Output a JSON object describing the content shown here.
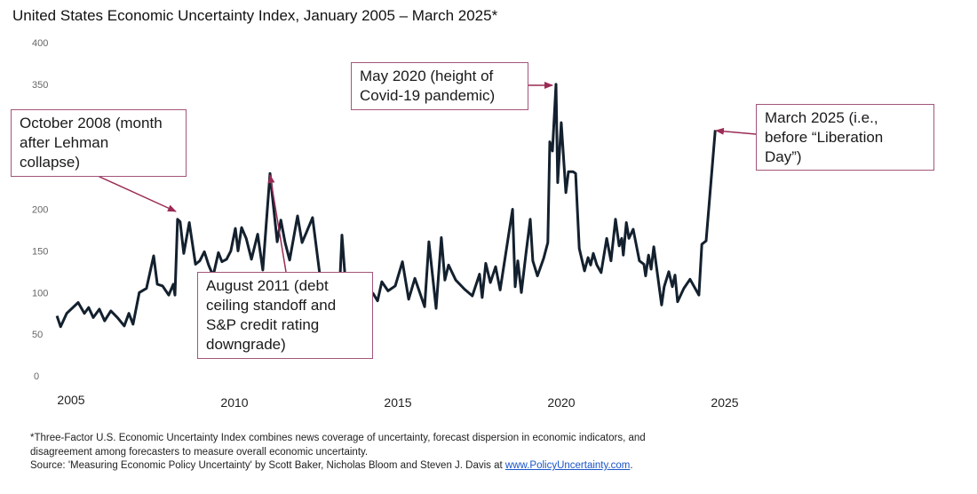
{
  "title": "United States Economic Uncertainty Index, January 2005 – March 2025*",
  "chart_data": {
    "type": "line",
    "title": "United States Economic Uncertainty Index, January 2005 – March 2025*",
    "xlabel": "",
    "ylabel": "",
    "xlim": [
      2005,
      2026
    ],
    "ylim": [
      0,
      400
    ],
    "yticks": [
      0,
      50,
      100,
      150,
      200,
      350,
      400
    ],
    "xticks": [
      "2005",
      "2010",
      "2015",
      "2020",
      "2025"
    ],
    "grid": false,
    "series": [
      {
        "name": "Three-Factor U.S. Economic Uncertainty Index",
        "color": "#13202e",
        "x": [
          2005.03,
          2005.14,
          2005.33,
          2005.68,
          2005.87,
          2006.0,
          2006.14,
          2006.33,
          2006.49,
          2006.68,
          2006.88,
          2007.09,
          2007.23,
          2007.36,
          2007.55,
          2007.77,
          2007.99,
          2008.1,
          2008.26,
          2008.45,
          2008.59,
          2008.64,
          2008.72,
          2008.8,
          2008.91,
          2009.08,
          2009.27,
          2009.4,
          2009.54,
          2009.67,
          2009.81,
          2009.97,
          2010.08,
          2010.22,
          2010.35,
          2010.49,
          2010.57,
          2010.68,
          2010.82,
          2010.98,
          2011.17,
          2011.33,
          2011.55,
          2011.77,
          2011.88,
          2012.01,
          2012.15,
          2012.39,
          2012.53,
          2012.66,
          2012.85,
          2013.07,
          2013.21,
          2013.48,
          2013.67,
          2013.75,
          2013.86,
          2014.16,
          2014.48,
          2014.7,
          2014.84,
          2014.97,
          2015.16,
          2015.38,
          2015.6,
          2015.79,
          2015.98,
          2016.28,
          2016.41,
          2016.63,
          2016.79,
          2016.9,
          2017.01,
          2017.23,
          2017.5,
          2017.74,
          2017.96,
          2018.04,
          2018.15,
          2018.29,
          2018.45,
          2018.59,
          2018.97,
          2019.05,
          2019.13,
          2019.24,
          2019.38,
          2019.51,
          2019.59,
          2019.73,
          2019.92,
          2020.05,
          2020.11,
          2020.19,
          2020.3,
          2020.35,
          2020.46,
          2020.6,
          2020.68,
          2020.82,
          2020.9,
          2021.01,
          2021.17,
          2021.28,
          2021.36,
          2021.44,
          2021.55,
          2021.68,
          2021.85,
          2021.98,
          2022.12,
          2022.23,
          2022.31,
          2022.36,
          2022.45,
          2022.53,
          2022.66,
          2022.85,
          2022.99,
          2023.04,
          2023.13,
          2023.21,
          2023.29,
          2023.53,
          2023.61,
          2023.75,
          2023.86,
          2023.94,
          2024.02,
          2024.21,
          2024.4,
          2024.67,
          2024.76,
          2024.89,
          2025.17
        ],
        "y": [
          72,
          59,
          75,
          88,
          75,
          82,
          70,
          80,
          66,
          78,
          70,
          60,
          75,
          62,
          100,
          105,
          144,
          110,
          108,
          97,
          110,
          97,
          188,
          185,
          147,
          184,
          134,
          138,
          149,
          133,
          120,
          148,
          137,
          140,
          150,
          177,
          150,
          178,
          165,
          140,
          170,
          127,
          243,
          161,
          187,
          160,
          139,
          192,
          160,
          172,
          190,
          122,
          115,
          120,
          100,
          169,
          112,
          110,
          105,
          99,
          90,
          113,
          102,
          108,
          137,
          92,
          117,
          83,
          161,
          81,
          166,
          115,
          133,
          115,
          104,
          96,
          122,
          94,
          135,
          112,
          131,
          103,
          200,
          107,
          138,
          100,
          147,
          188,
          138,
          120,
          141,
          160,
          281,
          270,
          350,
          232,
          304,
          220,
          245,
          245,
          243,
          153,
          126,
          142,
          133,
          147,
          133,
          124,
          165,
          138,
          188,
          156,
          165,
          145,
          184,
          165,
          176,
          138,
          134,
          120,
          145,
          128,
          155,
          85,
          107,
          125,
          107,
          121,
          89,
          105,
          116,
          97,
          158,
          162,
          295
        ]
      }
    ],
    "annotations": [
      {
        "id": "lehman",
        "text": "October 2008 (month after Lehman collapse)",
        "lines": [
          "October 2008 (month",
          "after Lehman",
          "collapse)"
        ],
        "target": [
          2008.75,
          188
        ]
      },
      {
        "id": "debt",
        "text": "August 2011 (debt ceiling standoff and S&P credit rating downgrade)",
        "lines": [
          "August 2011 (debt",
          "ceiling standoff and",
          "S&P credit rating",
          "downgrade)"
        ],
        "target": [
          2011.58,
          243
        ]
      },
      {
        "id": "covid",
        "text": "May 2020 (height of Covid-19 pandemic)",
        "lines": [
          "May 2020 (height of",
          "Covid-19 pandemic)"
        ],
        "target": [
          2020.37,
          350
        ]
      },
      {
        "id": "liberation",
        "text": "March 2025 (i.e., before “Liberation Day”)",
        "lines": [
          "March 2025 (i.e.,",
          "before “Liberation",
          "Day”)"
        ],
        "target": [
          2025.17,
          295
        ]
      }
    ],
    "annotation_color": "#9b2c55"
  },
  "footnote": {
    "line1": "*Three-Factor U.S. Economic Uncertainty Index combines news coverage of uncertainty, forecast dispersion in economic indicators, and",
    "line2": "disagreement among forecasters to measure overall economic uncertainty.",
    "source_prefix": "Source: 'Measuring Economic Policy Uncertainty' by Scott Baker, Nicholas Bloom and Steven J. Davis at ",
    "link": "www.PolicyUncertainty.com",
    "suffix": "."
  }
}
